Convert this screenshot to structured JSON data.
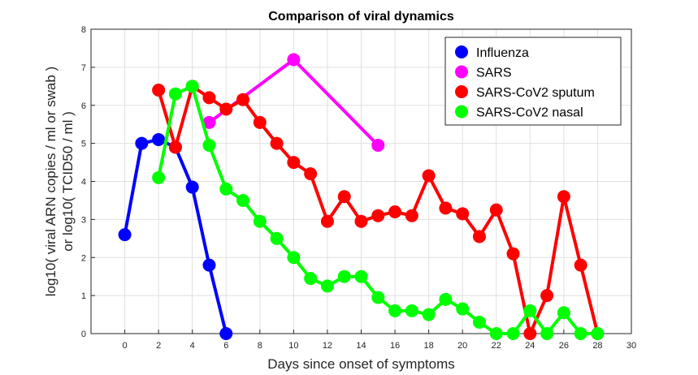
{
  "chart_data": {
    "type": "line",
    "title": "Comparison of viral dynamics",
    "xlabel": "Days since onset of symptoms",
    "ylabel_line1": "log10( viral ARN copies / ml or swab )",
    "ylabel_line2": "or log10( TCID50 / ml )",
    "xlim": [
      -2,
      30
    ],
    "ylim": [
      0,
      8
    ],
    "xticks": [
      0,
      2,
      4,
      6,
      8,
      10,
      12,
      14,
      16,
      18,
      20,
      22,
      24,
      26,
      28,
      30
    ],
    "yticks": [
      0,
      1,
      2,
      3,
      4,
      5,
      6,
      7,
      8
    ],
    "grid": true,
    "legend_position": "top-right",
    "series": [
      {
        "name": "Influenza",
        "color": "#0000ff",
        "x": [
          0,
          1,
          2,
          3,
          4,
          5,
          6
        ],
        "y": [
          2.6,
          5.0,
          5.1,
          4.9,
          3.85,
          1.8,
          0.0
        ]
      },
      {
        "name": "SARS",
        "color": "#ff00ff",
        "x": [
          5,
          10,
          15
        ],
        "y": [
          5.55,
          7.2,
          4.95
        ]
      },
      {
        "name": "SARS-CoV2 sputum",
        "color": "#ff0000",
        "x": [
          2,
          3,
          4,
          5,
          6,
          7,
          8,
          9,
          10,
          11,
          12,
          13,
          14,
          15,
          16,
          17,
          18,
          19,
          20,
          21,
          22,
          23,
          24,
          25,
          26,
          27,
          28
        ],
        "y": [
          6.4,
          4.9,
          6.5,
          6.2,
          5.9,
          6.15,
          5.55,
          5.0,
          4.5,
          4.2,
          2.95,
          3.6,
          2.95,
          3.1,
          3.2,
          3.1,
          4.15,
          3.3,
          3.15,
          2.55,
          3.25,
          2.1,
          0.0,
          1.0,
          3.6,
          1.8,
          0.0
        ]
      },
      {
        "name": "SARS-CoV2 nasal",
        "color": "#00ff00",
        "x": [
          2,
          3,
          4,
          5,
          6,
          7,
          8,
          9,
          10,
          11,
          12,
          13,
          14,
          15,
          16,
          17,
          18,
          19,
          20,
          21,
          22,
          23,
          24,
          25,
          26,
          27,
          28
        ],
        "y": [
          4.1,
          6.3,
          6.5,
          4.95,
          3.8,
          3.5,
          2.95,
          2.5,
          2.0,
          1.45,
          1.25,
          1.5,
          1.5,
          0.95,
          0.6,
          0.6,
          0.5,
          0.9,
          0.65,
          0.3,
          0.0,
          0.0,
          0.6,
          0.0,
          0.55,
          0.0,
          0.0
        ]
      }
    ]
  }
}
